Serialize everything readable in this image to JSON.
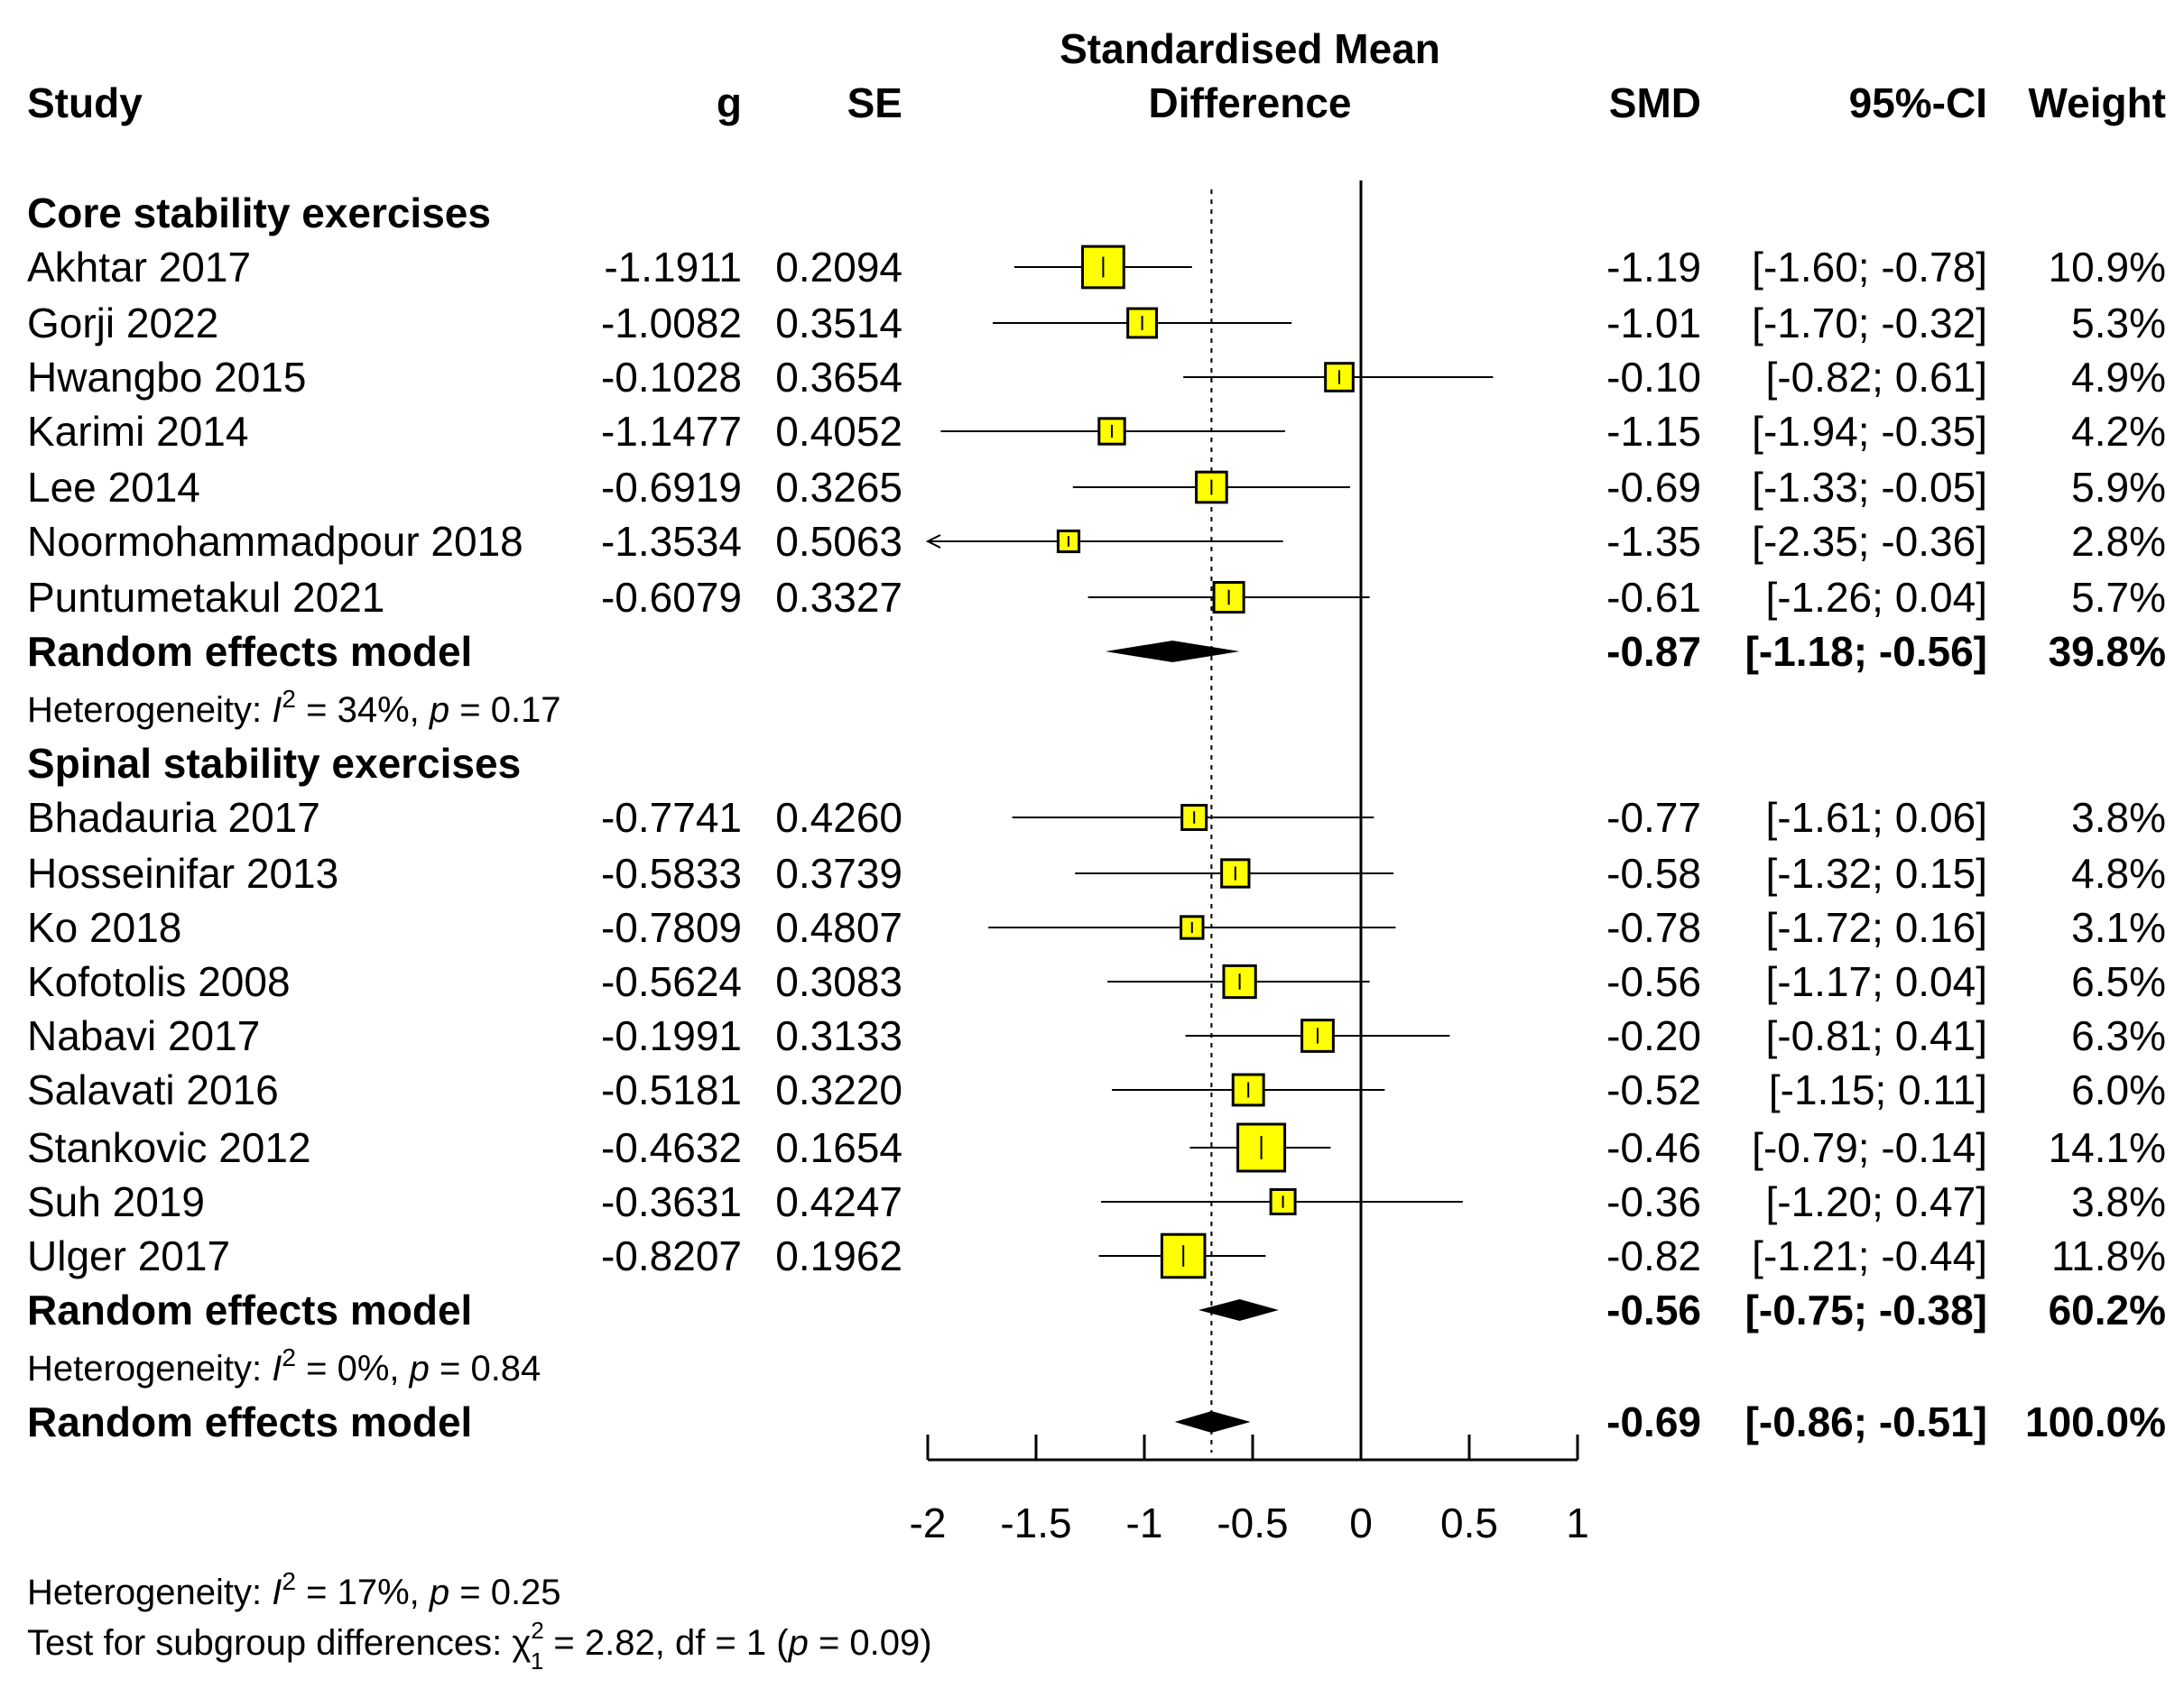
{
  "chart_data": {
    "type": "forest",
    "headers": {
      "study": "Study",
      "g": "g",
      "se": "SE",
      "plot_title_line1": "Standardised Mean",
      "plot_title_line2": "Difference",
      "smd": "SMD",
      "ci": "95%-CI",
      "weight": "Weight"
    },
    "xlim": [
      -2,
      1
    ],
    "xticks": [
      -2,
      -1.5,
      -1,
      -0.5,
      0,
      0.5,
      1
    ],
    "xtick_labels": [
      "-2",
      "-1.5",
      "-1",
      "-0.5",
      "0",
      "0.5",
      "1"
    ],
    "reference_line": 0,
    "overall_effect_line": -0.69,
    "groups": [
      {
        "name": "Core stability exercises",
        "studies": [
          {
            "study": "Akhtar 2017",
            "g": "-1.1911",
            "se": "0.2094",
            "smd": -1.19,
            "lower": -1.6,
            "upper": -0.78,
            "smd_text": "-1.19",
            "ci_text": "[-1.60; -0.78]",
            "weight": 10.9,
            "weight_text": "10.9%"
          },
          {
            "study": "Gorji 2022",
            "g": "-1.0082",
            "se": "0.3514",
            "smd": -1.01,
            "lower": -1.7,
            "upper": -0.32,
            "smd_text": "-1.01",
            "ci_text": "[-1.70; -0.32]",
            "weight": 5.3,
            "weight_text": "5.3%"
          },
          {
            "study": "Hwangbo 2015",
            "g": "-0.1028",
            "se": "0.3654",
            "smd": -0.1,
            "lower": -0.82,
            "upper": 0.61,
            "smd_text": "-0.10",
            "ci_text": "[-0.82;  0.61]",
            "weight": 4.9,
            "weight_text": "4.9%"
          },
          {
            "study": "Karimi 2014",
            "g": "-1.1477",
            "se": "0.4052",
            "smd": -1.15,
            "lower": -1.94,
            "upper": -0.35,
            "smd_text": "-1.15",
            "ci_text": "[-1.94; -0.35]",
            "weight": 4.2,
            "weight_text": "4.2%"
          },
          {
            "study": "Lee 2014",
            "g": "-0.6919",
            "se": "0.3265",
            "smd": -0.69,
            "lower": -1.33,
            "upper": -0.05,
            "smd_text": "-0.69",
            "ci_text": "[-1.33; -0.05]",
            "weight": 5.9,
            "weight_text": "5.9%"
          },
          {
            "study": "Noormohammadpour 2018",
            "g": "-1.3534",
            "se": "0.5063",
            "smd": -1.35,
            "lower": -2.35,
            "upper": -0.36,
            "smd_text": "-1.35",
            "ci_text": "[-2.35; -0.36]",
            "weight": 2.8,
            "weight_text": "2.8%"
          },
          {
            "study": "Puntumetakul 2021",
            "g": "-0.6079",
            "se": "0.3327",
            "smd": -0.61,
            "lower": -1.26,
            "upper": 0.04,
            "smd_text": "-0.61",
            "ci_text": "[-1.26;  0.04]",
            "weight": 5.7,
            "weight_text": "5.7%"
          }
        ],
        "pooled": {
          "label": "Random effects model",
          "smd": -0.87,
          "lower": -1.18,
          "upper": -0.56,
          "smd_text": "-0.87",
          "ci_text": "[-1.18; -0.56]",
          "weight_text": "39.8%"
        },
        "heterogeneity": {
          "prefix": "Heterogeneity: ",
          "i": "I",
          "sup": "2",
          "i2_text": " = 34%, ",
          "p": "p",
          "p_text": " = 0.17"
        }
      },
      {
        "name": "Spinal stability exercises",
        "studies": [
          {
            "study": "Bhadauria 2017",
            "g": "-0.7741",
            "se": "0.4260",
            "smd": -0.77,
            "lower": -1.61,
            "upper": 0.06,
            "smd_text": "-0.77",
            "ci_text": "[-1.61;  0.06]",
            "weight": 3.8,
            "weight_text": "3.8%"
          },
          {
            "study": "Hosseinifar 2013",
            "g": "-0.5833",
            "se": "0.3739",
            "smd": -0.58,
            "lower": -1.32,
            "upper": 0.15,
            "smd_text": "-0.58",
            "ci_text": "[-1.32;  0.15]",
            "weight": 4.8,
            "weight_text": "4.8%"
          },
          {
            "study": "Ko 2018",
            "g": "-0.7809",
            "se": "0.4807",
            "smd": -0.78,
            "lower": -1.72,
            "upper": 0.16,
            "smd_text": "-0.78",
            "ci_text": "[-1.72;  0.16]",
            "weight": 3.1,
            "weight_text": "3.1%"
          },
          {
            "study": "Kofotolis 2008",
            "g": "-0.5624",
            "se": "0.3083",
            "smd": -0.56,
            "lower": -1.17,
            "upper": 0.04,
            "smd_text": "-0.56",
            "ci_text": "[-1.17;  0.04]",
            "weight": 6.5,
            "weight_text": "6.5%"
          },
          {
            "study": "Nabavi 2017",
            "g": "-0.1991",
            "se": "0.3133",
            "smd": -0.2,
            "lower": -0.81,
            "upper": 0.41,
            "smd_text": "-0.20",
            "ci_text": "[-0.81;  0.41]",
            "weight": 6.3,
            "weight_text": "6.3%"
          },
          {
            "study": "Salavati 2016",
            "g": "-0.5181",
            "se": "0.3220",
            "smd": -0.52,
            "lower": -1.15,
            "upper": 0.11,
            "smd_text": "-0.52",
            "ci_text": "[-1.15;  0.11]",
            "weight": 6.0,
            "weight_text": "6.0%"
          },
          {
            "study": "Stankovic 2012",
            "g": "-0.4632",
            "se": "0.1654",
            "smd": -0.46,
            "lower": -0.79,
            "upper": -0.14,
            "smd_text": "-0.46",
            "ci_text": "[-0.79; -0.14]",
            "weight": 14.1,
            "weight_text": "14.1%"
          },
          {
            "study": "Suh 2019",
            "g": "-0.3631",
            "se": "0.4247",
            "smd": -0.36,
            "lower": -1.2,
            "upper": 0.47,
            "smd_text": "-0.36",
            "ci_text": "[-1.20;  0.47]",
            "weight": 3.8,
            "weight_text": "3.8%"
          },
          {
            "study": "Ulger 2017",
            "g": "-0.8207",
            "se": "0.1962",
            "smd": -0.82,
            "lower": -1.21,
            "upper": -0.44,
            "smd_text": "-0.82",
            "ci_text": "[-1.21; -0.44]",
            "weight": 11.8,
            "weight_text": "11.8%"
          }
        ],
        "pooled": {
          "label": "Random effects model",
          "smd": -0.56,
          "lower": -0.75,
          "upper": -0.38,
          "smd_text": "-0.56",
          "ci_text": "[-0.75; -0.38]",
          "weight_text": "60.2%"
        },
        "heterogeneity": {
          "prefix": "Heterogeneity: ",
          "i": "I",
          "sup": "2",
          "i2_text": " = 0%, ",
          "p": "p",
          "p_text": " = 0.84"
        }
      }
    ],
    "overall": {
      "label": "Random effects model",
      "smd": -0.69,
      "lower": -0.86,
      "upper": -0.51,
      "smd_text": "-0.69",
      "ci_text": "[-0.86; -0.51]",
      "weight_text": "100.0%"
    },
    "overall_heterogeneity": {
      "prefix": "Heterogeneity: ",
      "i": "I",
      "sup": "2",
      "i2_text": " = 17%, ",
      "p": "p",
      "p_text": " = 0.25"
    },
    "subgroup_test": {
      "prefix": "Test for subgroup differences: ",
      "chi": "χ",
      "sup": "2",
      "sub": "1",
      "stat_text": " = 2.82, df = 1 (",
      "p": "p",
      "p_text": " = 0.09)"
    },
    "colors": {
      "square_fill": "#ffff00",
      "square_stroke": "#000000",
      "diamond": "#000000",
      "line": "#000000"
    }
  }
}
